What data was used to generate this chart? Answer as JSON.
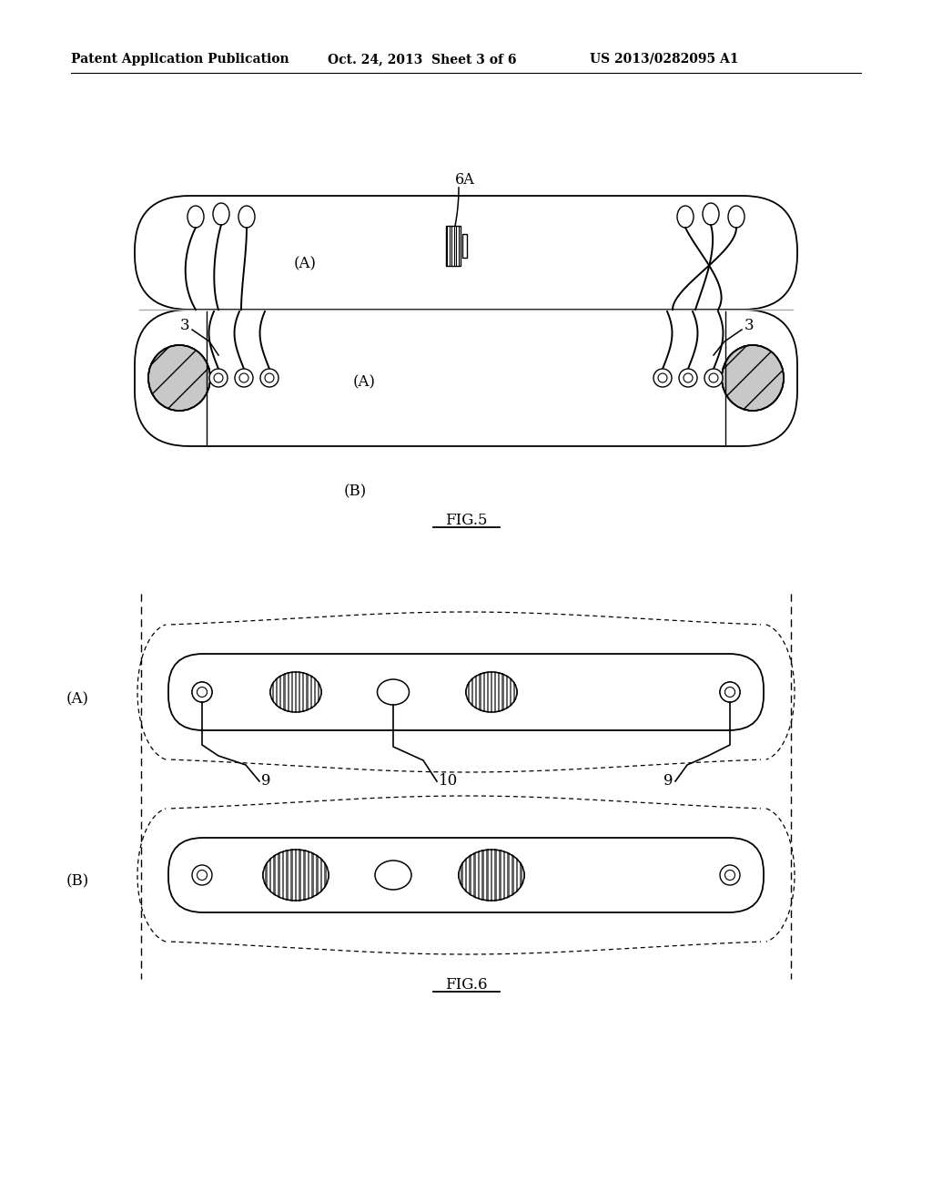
{
  "bg_color": "#ffffff",
  "header_left": "Patent Application Publication",
  "header_mid": "Oct. 24, 2013  Sheet 3 of 6",
  "header_right": "US 2013/0282095 A1",
  "fig5_label": "FIG.5",
  "fig6_label": "FIG.6",
  "label_A1": "(A)",
  "label_B1": "(B)",
  "label_A2": "(A)",
  "label_B2": "(B)",
  "label_6A": "6A",
  "label_3": "3",
  "label_9": "9",
  "label_10": "10"
}
